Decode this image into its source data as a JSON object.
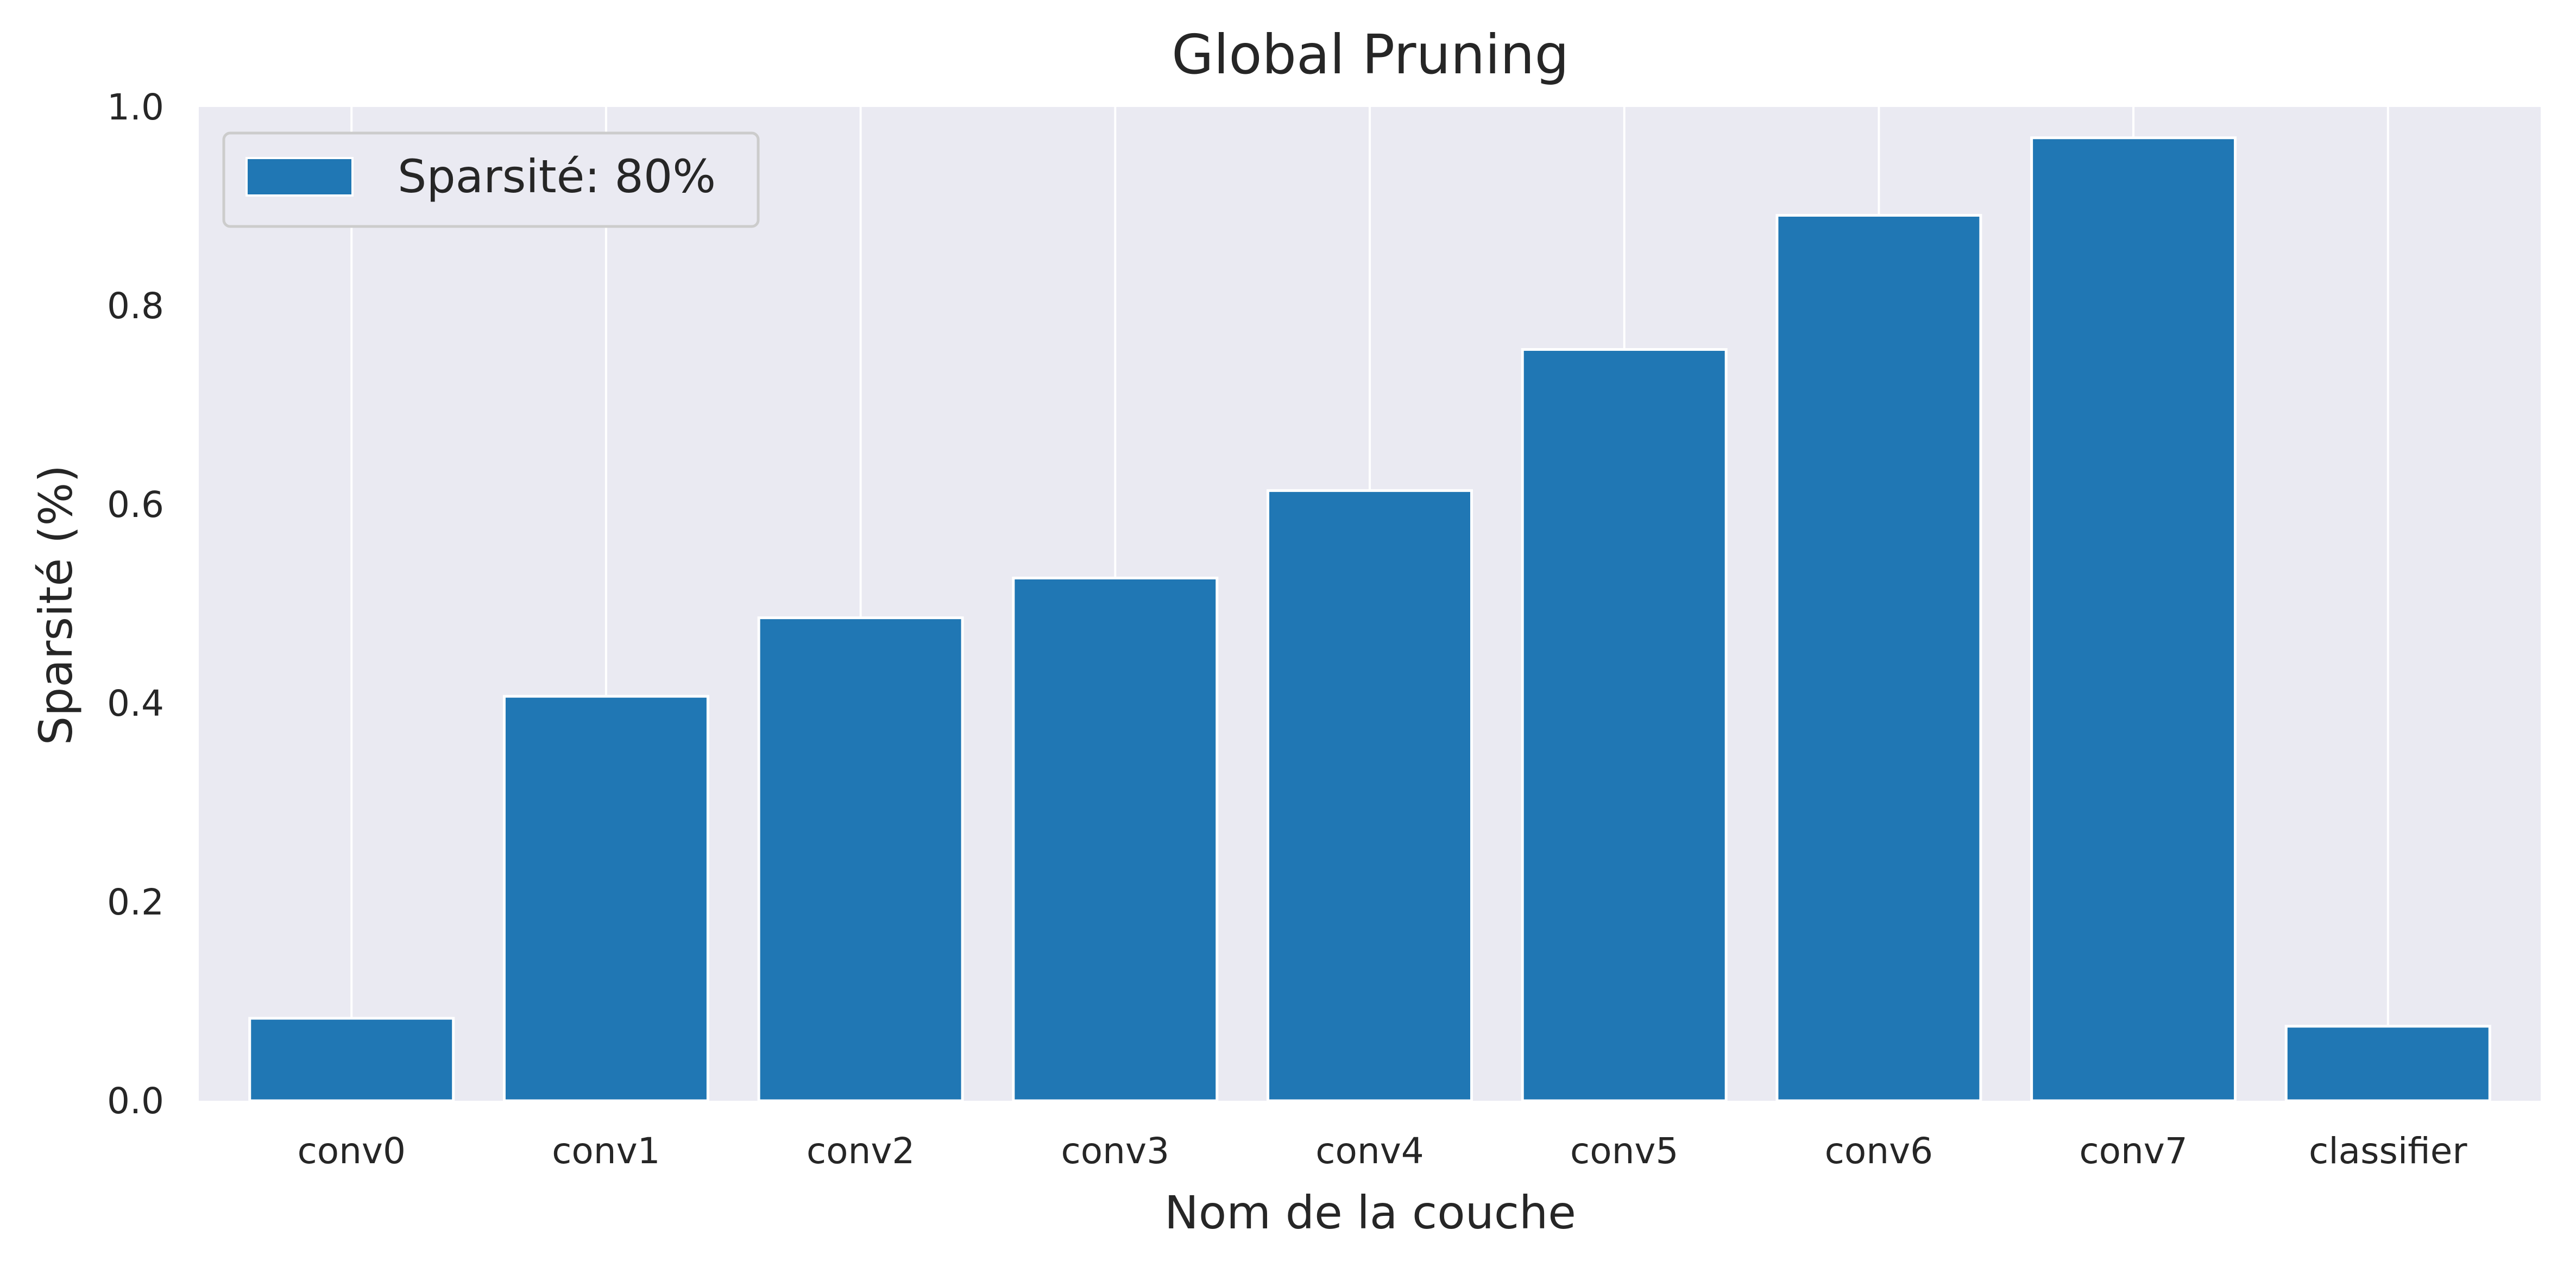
{
  "chart_data": {
    "type": "bar",
    "title": "Global Pruning",
    "xlabel": "Nom de la couche",
    "ylabel": "Sparsité (%)",
    "categories": [
      "conv0",
      "conv1",
      "conv2",
      "conv3",
      "conv4",
      "conv5",
      "conv6",
      "conv7",
      "classifier"
    ],
    "series": [
      {
        "name": "Sparsité: 80%",
        "values": [
          0.083,
          0.407,
          0.486,
          0.526,
          0.614,
          0.756,
          0.891,
          0.969,
          0.075
        ],
        "color": "#2077b4"
      }
    ],
    "ylim": [
      0,
      1.0
    ],
    "yticks": [
      0.0,
      0.2,
      0.4,
      0.6,
      0.8,
      1.0
    ],
    "ytick_labels": [
      "0.0",
      "0.2",
      "0.4",
      "0.6",
      "0.8",
      "1.0"
    ],
    "grid": "vertical",
    "legend_position": "top-left",
    "background": "#eaeaf2",
    "grid_color": "#ffffff"
  }
}
